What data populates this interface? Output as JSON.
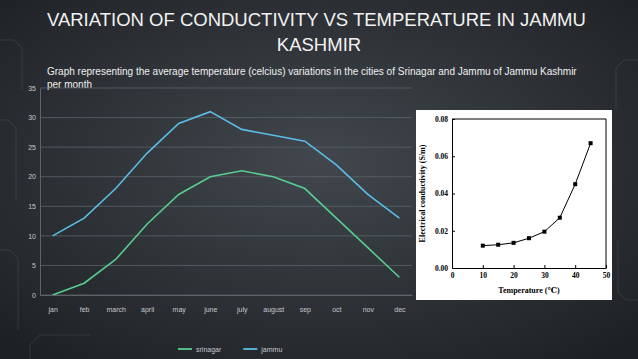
{
  "title": "VARIATION OF CONDUCTIVITY VS TEMPERATURE IN JAMMU KASHMIR",
  "chart_data": [
    {
      "type": "line",
      "title": "Graph representing the average temperature (celcius) variations in the cities of Srinagar and Jammu of Jammu Kashmir per month",
      "categories": [
        "jan",
        "feb",
        "march",
        "april",
        "may",
        "june",
        "july",
        "august",
        "sep",
        "oct",
        "nov",
        "dec"
      ],
      "series": [
        {
          "name": "srinagar",
          "color": "#58cc92",
          "values": [
            0,
            2,
            6,
            12,
            17,
            20,
            21,
            20,
            18,
            13,
            8,
            3
          ]
        },
        {
          "name": "jammu",
          "color": "#5bbde8",
          "values": [
            10,
            13,
            18,
            24,
            29,
            31,
            28,
            27,
            26,
            22,
            17,
            13
          ]
        }
      ],
      "ylim": [
        0,
        35
      ],
      "yticks": [
        0,
        5,
        10,
        15,
        20,
        25,
        30,
        35
      ],
      "grid": true,
      "legend": "bottom"
    },
    {
      "type": "line",
      "x_label": "Temperature (℃)",
      "y_label": "Electrical conductivity (S/m)",
      "x": [
        10,
        15,
        20,
        25,
        30,
        35,
        40,
        45
      ],
      "values": [
        0.012,
        0.0125,
        0.0135,
        0.016,
        0.0195,
        0.027,
        0.045,
        0.067
      ],
      "color": "#000000",
      "marker": "square",
      "xlim": [
        0,
        50
      ],
      "xticks": [
        0,
        10,
        20,
        30,
        40,
        50
      ],
      "ylim": [
        0,
        0.08
      ],
      "yticks": [
        {
          "value": 0,
          "label": "0.00"
        },
        0.02,
        0.04,
        0.06,
        0.08
      ],
      "grid": false
    }
  ]
}
